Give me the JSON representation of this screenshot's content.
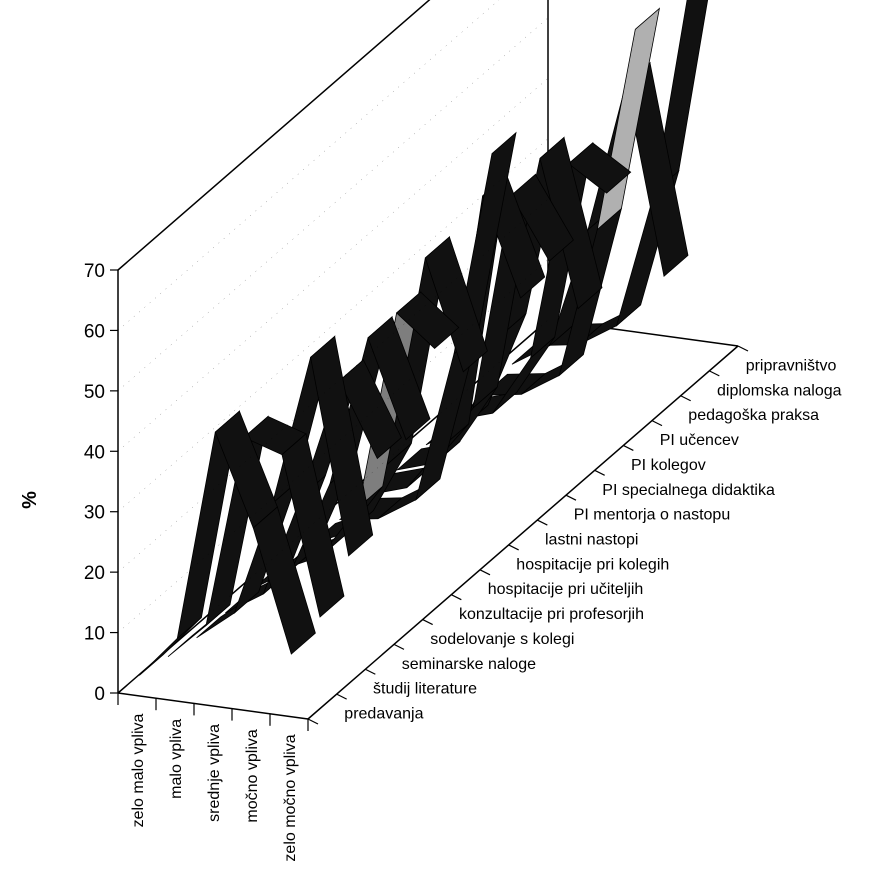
{
  "chart_data": {
    "type": "line",
    "variant": "3d-ribbon",
    "y_unit_label": "%",
    "ylim": [
      0,
      70
    ],
    "y_ticks": [
      0,
      10,
      20,
      30,
      40,
      50,
      60,
      70
    ],
    "categories": [
      "zelo malo vpliva",
      "malo vpliva",
      "srednje vpliva",
      "močno vpliva",
      "zelo močno vpliva"
    ],
    "series": [
      {
        "name": "predavanja",
        "values": [
          3,
          10,
          45,
          30,
          10
        ]
      },
      {
        "name": "študij literature",
        "values": [
          2,
          8,
          40,
          38,
          12
        ]
      },
      {
        "name": "seminarske naloge",
        "values": [
          1,
          6,
          25,
          50,
          18
        ]
      },
      {
        "name": "sodelovanje s kolegi",
        "values": [
          1,
          5,
          22,
          42,
          30
        ]
      },
      {
        "name": "konzultacije pri profesorjih",
        "values": [
          1,
          5,
          20,
          45,
          29
        ]
      },
      {
        "name": "hospitacije pri  učiteljih",
        "values": [
          0,
          3,
          12,
          45,
          40
        ]
      },
      {
        "name": "hospitacije pri kolegih",
        "values": [
          0,
          3,
          15,
          50,
          32
        ]
      },
      {
        "name": "lastni nastopi",
        "values": [
          0,
          1,
          5,
          30,
          64
        ]
      },
      {
        "name": "PI mentorja o nastopu",
        "values": [
          0,
          2,
          10,
          52,
          36
        ]
      },
      {
        "name": "PI specialnega didaktika",
        "values": [
          0,
          2,
          12,
          48,
          38
        ]
      },
      {
        "name": "PI kolegov",
        "values": [
          0,
          4,
          20,
          50,
          26
        ]
      },
      {
        "name": "PI učencev",
        "values": [
          0,
          2,
          12,
          45,
          41
        ]
      },
      {
        "name": "pedagoška praksa",
        "values": [
          0,
          1,
          5,
          30,
          64
        ]
      },
      {
        "name": "diplomska naloga",
        "values": [
          1,
          5,
          25,
          50,
          19
        ]
      },
      {
        "name": "pripravništvo",
        "values": [
          0,
          1,
          5,
          28,
          66
        ]
      }
    ]
  }
}
